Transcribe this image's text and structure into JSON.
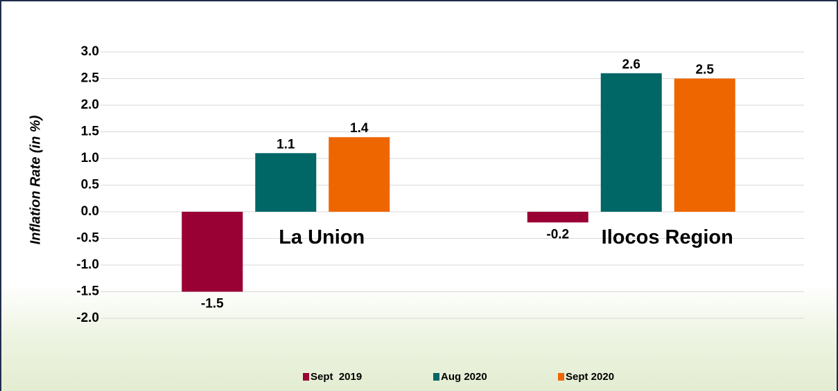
{
  "chart_data": {
    "type": "bar",
    "y_label": "Inflation Rate (in %)",
    "categories": [
      "La Union",
      "Ilocos Region"
    ],
    "series": [
      {
        "name": "Sept  2019",
        "color": "#990033",
        "values": [
          -1.5,
          -0.2
        ]
      },
      {
        "name": "Aug 2020",
        "color": "#006666",
        "values": [
          1.1,
          2.6
        ]
      },
      {
        "name": "Sept 2020",
        "color": "#ee6600",
        "values": [
          1.4,
          2.5
        ]
      }
    ],
    "ylim": [
      -2,
      3
    ],
    "yticks": [
      {
        "value": -2,
        "label": "-2.0"
      },
      {
        "value": -1.5,
        "label": "-1.5"
      },
      {
        "value": -1,
        "label": "-1.0"
      },
      {
        "value": -0.5,
        "label": "-0.5"
      },
      {
        "value": 0,
        "label": "0.0"
      },
      {
        "value": 0.5,
        "label": "0.5"
      },
      {
        "value": 1,
        "label": "1.0"
      },
      {
        "value": 1.5,
        "label": "1.5"
      },
      {
        "value": 2,
        "label": "2.0"
      },
      {
        "value": 2.5,
        "label": "2.5"
      },
      {
        "value": 3,
        "label": "3.0"
      }
    ],
    "grid": true,
    "legend": "bottom"
  }
}
